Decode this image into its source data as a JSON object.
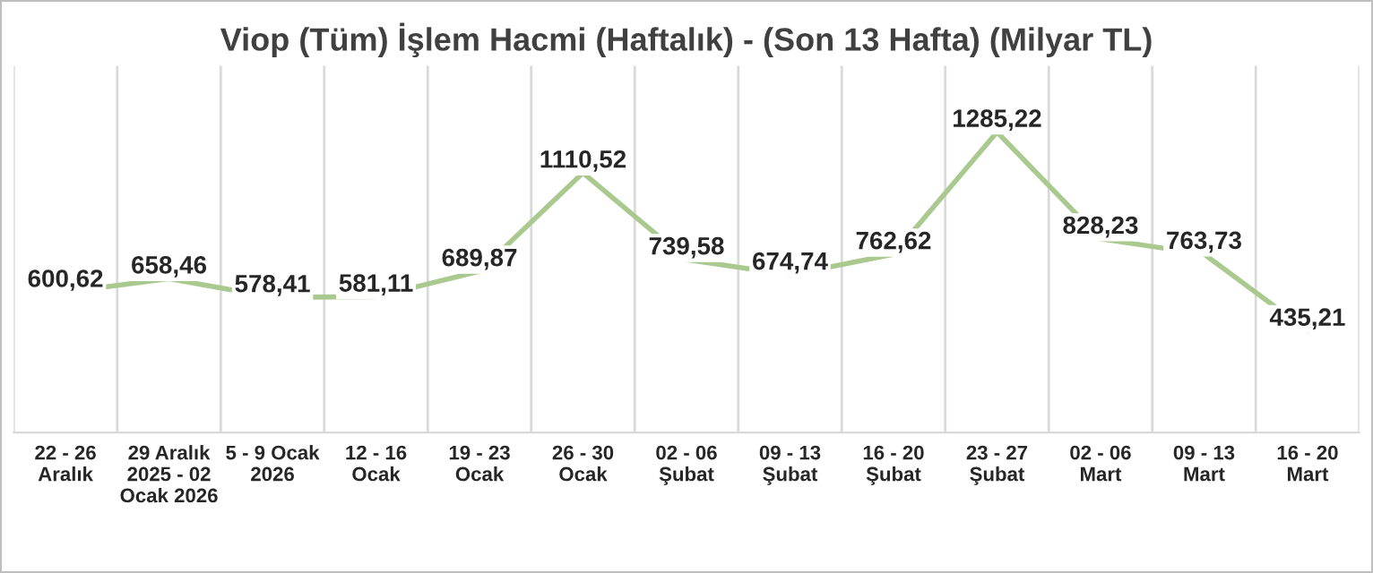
{
  "chart_data": {
    "type": "line",
    "title": "Viop (Tüm) İşlem Hacmi (Haftalık) - (Son 13 Hafta) (Milyar TL)",
    "categories": [
      "22 - 26\nAralık",
      "29 Aralık\n2025 - 02\nOcak 2026",
      "5 - 9 Ocak\n2026",
      "12 - 16\nOcak",
      "19 - 23\nOcak",
      "26 - 30\nOcak",
      "02 - 06\nŞubat",
      "09 - 13\nŞubat",
      "16 - 20\nŞubat",
      "23 - 27\nŞubat",
      "02 - 06\nMart",
      "09 - 13\nMart",
      "16 - 20\nMart"
    ],
    "series": [
      {
        "color": "#a9c98f",
        "values": [
          600.62,
          658.46,
          578.41,
          581.11,
          689.87,
          1110.52,
          739.58,
          674.74,
          762.62,
          1285.22,
          828.23,
          763.73,
          435.21
        ],
        "value_labels": [
          "600,62",
          "658,46",
          "578,41",
          "581,11",
          "689,87",
          "1110,52",
          "739,58",
          "674,74",
          "762,62",
          "1285,22",
          "828,23",
          "763,73",
          "435,21"
        ]
      }
    ],
    "grid": "x",
    "legend": false,
    "tick_labels": "x",
    "marker": "none",
    "line_style": "solid"
  }
}
